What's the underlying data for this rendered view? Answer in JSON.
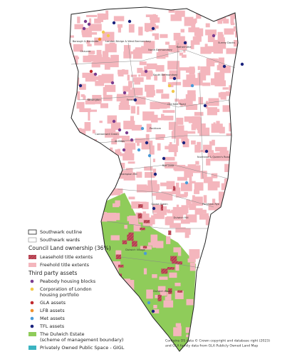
{
  "ward_labels": [
    "Borough & Bankside",
    "London Bridge & West Bermondsey",
    "Chaucer",
    "North Bermondsey",
    "Rotherhithe",
    "Surrey Docks",
    "South Bermondsey",
    "Newington",
    "Faraday",
    "Old Kent Road",
    "Peckham",
    "Camberwell Green",
    "St Giles",
    "Nunhead & Queen's Road",
    "Rye Lane",
    "Champion Hill",
    "Goose Green",
    "Peckham Rye",
    "Dulwich Hill",
    "Dulwich Village",
    "Dulwich Wood"
  ],
  "legend": {
    "outline": "Southwark outline",
    "wards": "Southwark wards",
    "council_title": "Council Land ownership (36%)",
    "leasehold": "Leasehold title extents",
    "freehold": "Freehold title extents",
    "third_party_title": "Third party assets",
    "peabody": "Peabody housing blocks",
    "corporation": [
      "Corporation of London",
      "housing portfolio"
    ],
    "gla": "GLA assets",
    "lfb": "LFB assets",
    "met": "Met assets",
    "tfl": "TFL assets",
    "dulwich": [
      "The Dulwich Estate",
      "(scheme of management boundary)"
    ],
    "pops": "Privately Owned Public Space - GIGL"
  },
  "credit": [
    "Contains OS data © Crown copyright and database right (2023)",
    "and GLA family data from GLA Publicly Owned Land Map"
  ]
}
